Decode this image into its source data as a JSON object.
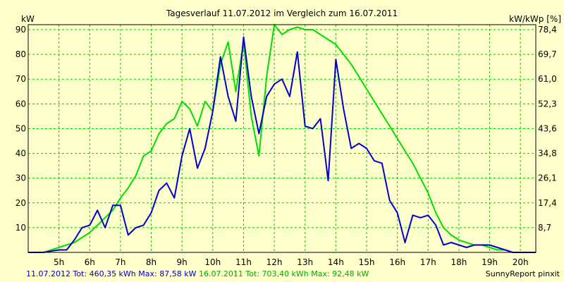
{
  "chart_data": {
    "type": "line",
    "title": "Tagesverlauf 11.07.2012 im Vergleich zum 16.07.2011",
    "ylabel_left": "kW",
    "ylabel_right": "kW/kWp [%]",
    "xlim": [
      4.0,
      20.5
    ],
    "ylim": [
      0,
      92
    ],
    "x_ticks": [
      5,
      6,
      7,
      8,
      9,
      10,
      11,
      12,
      13,
      14,
      15,
      16,
      17,
      18,
      19,
      20
    ],
    "x_tick_labels": [
      "5h",
      "6h",
      "7h",
      "8h",
      "9h",
      "10h",
      "11h",
      "12h",
      "13h",
      "14h",
      "15h",
      "16h",
      "17h",
      "18h",
      "19h",
      "20h"
    ],
    "y_ticks_left": [
      10,
      20,
      30,
      40,
      50,
      60,
      70,
      80,
      90
    ],
    "y_tick_labels_left": [
      "10",
      "20",
      "30",
      "40",
      "50",
      "60",
      "70",
      "80",
      "90"
    ],
    "y_ticks_right_values": [
      10,
      20,
      30,
      40,
      50,
      60,
      70,
      80,
      90
    ],
    "y_tick_labels_right": [
      "8,7",
      "17,4",
      "26,1",
      "34,8",
      "43,6",
      "52,3",
      "61,0",
      "69,7",
      "78,4"
    ],
    "grid": true,
    "series": [
      {
        "name": "11.07.2012",
        "color": "#0000cc",
        "x": [
          4.0,
          4.5,
          4.75,
          5.0,
          5.25,
          5.5,
          5.75,
          6.0,
          6.25,
          6.5,
          6.75,
          7.0,
          7.25,
          7.5,
          7.75,
          8.0,
          8.25,
          8.5,
          8.75,
          9.0,
          9.25,
          9.5,
          9.75,
          10.0,
          10.25,
          10.5,
          10.75,
          11.0,
          11.25,
          11.5,
          11.75,
          12.0,
          12.25,
          12.5,
          12.75,
          13.0,
          13.25,
          13.5,
          13.75,
          14.0,
          14.25,
          14.5,
          14.75,
          15.0,
          15.25,
          15.5,
          15.75,
          16.0,
          16.25,
          16.5,
          16.75,
          17.0,
          17.25,
          17.5,
          17.75,
          18.0,
          18.25,
          18.5,
          18.75,
          19.0,
          19.25,
          19.5,
          19.75,
          20.0,
          20.5
        ],
        "values": [
          0,
          0,
          0.5,
          1,
          1,
          5,
          10,
          11,
          17,
          10,
          19,
          19,
          7,
          10,
          11,
          16,
          25,
          28,
          22,
          39,
          50,
          34,
          42,
          57,
          79,
          63,
          53,
          87,
          63,
          48,
          63,
          68,
          70,
          63,
          81,
          51,
          50,
          54,
          29,
          78,
          58,
          42,
          44,
          42,
          37,
          36,
          21,
          16,
          4,
          15,
          14,
          15,
          11,
          3,
          4,
          3,
          2,
          3,
          3,
          3,
          2,
          1,
          0,
          0,
          0
        ]
      },
      {
        "name": "16.07.2011",
        "color": "#00dd00",
        "x": [
          4.0,
          4.5,
          4.75,
          5.0,
          5.25,
          5.5,
          5.75,
          6.0,
          6.25,
          6.5,
          6.75,
          7.0,
          7.25,
          7.5,
          7.75,
          8.0,
          8.25,
          8.5,
          8.75,
          9.0,
          9.25,
          9.5,
          9.75,
          10.0,
          10.25,
          10.5,
          10.75,
          11.0,
          11.25,
          11.5,
          11.75,
          12.0,
          12.25,
          12.5,
          12.75,
          13.0,
          13.25,
          13.5,
          13.75,
          14.0,
          14.25,
          14.5,
          14.75,
          15.0,
          15.25,
          15.5,
          15.75,
          16.0,
          16.25,
          16.5,
          16.75,
          17.0,
          17.25,
          17.5,
          17.75,
          18.0,
          18.25,
          18.5,
          18.75,
          19.0,
          19.25,
          19.5,
          19.75,
          20.0,
          20.5
        ],
        "values": [
          0,
          0,
          1,
          2,
          3,
          4,
          6,
          8,
          11,
          14,
          17,
          22,
          26,
          31,
          39,
          41,
          48,
          52,
          54,
          61,
          58,
          51,
          61,
          57,
          76,
          85,
          65,
          85,
          55,
          39,
          71,
          92,
          88,
          90,
          91,
          90,
          90,
          88,
          86,
          84,
          80,
          76,
          71,
          66,
          61,
          56,
          51,
          46,
          41,
          36,
          30,
          24,
          16,
          10,
          7,
          5,
          4,
          3,
          3,
          2,
          1,
          1,
          0,
          0,
          0
        ]
      }
    ],
    "footer_left": [
      {
        "text": "11.07.2012 Tot: 460,35 kWh Max: 87,58 kW",
        "color": "#0000cc"
      },
      {
        "text": " 16.07.2011 Tot: 703,40 kWh Max: 92,48 kW",
        "color": "#00aa00"
      }
    ],
    "footer_right": "SunnyReport pinxit",
    "colors": {
      "background": "#ffffcc",
      "grid": "#00cc00",
      "axis": "#000000"
    }
  }
}
